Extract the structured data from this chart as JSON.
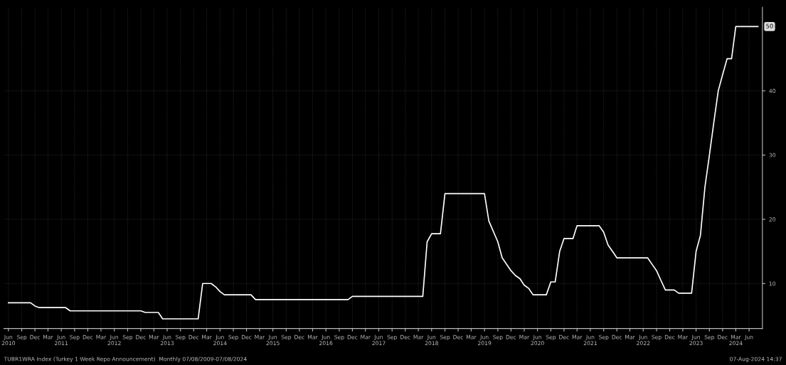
{
  "chart_data": {
    "type": "line",
    "x": [
      "2010-06",
      "2010-11",
      "2010-12",
      "2011-01",
      "2011-02",
      "2011-07",
      "2011-08",
      "2012-12",
      "2013-01",
      "2013-04",
      "2013-05",
      "2014-01",
      "2014-02",
      "2014-04",
      "2014-05",
      "2014-06",
      "2014-07",
      "2015-01",
      "2015-02",
      "2016-11",
      "2016-12",
      "2018-04",
      "2018-05",
      "2018-06",
      "2018-08",
      "2018-09",
      "2019-06",
      "2019-07",
      "2019-09",
      "2019-10",
      "2019-12",
      "2020-01",
      "2020-02",
      "2020-03",
      "2020-04",
      "2020-05",
      "2020-08",
      "2020-09",
      "2020-10",
      "2020-11",
      "2020-12",
      "2021-02",
      "2021-03",
      "2021-08",
      "2021-09",
      "2021-10",
      "2021-11",
      "2021-12",
      "2022-07",
      "2022-08",
      "2022-09",
      "2022-10",
      "2022-11",
      "2023-01",
      "2023-02",
      "2023-05",
      "2023-06",
      "2023-07",
      "2023-08",
      "2023-09",
      "2023-10",
      "2023-11",
      "2023-12",
      "2024-01",
      "2024-02",
      "2024-03",
      "2024-08"
    ],
    "series": [
      {
        "color": "#ffffff",
        "values": [
          7,
          7,
          6.5,
          6.25,
          6.25,
          6.25,
          5.75,
          5.75,
          5.5,
          5.5,
          4.5,
          4.5,
          10,
          10,
          9.5,
          8.75,
          8.25,
          8.25,
          7.5,
          7.5,
          8,
          8,
          16.5,
          17.75,
          17.75,
          24,
          24,
          19.75,
          16.5,
          14,
          12,
          11.25,
          10.75,
          9.75,
          9.25,
          8.25,
          8.25,
          10.25,
          10.25,
          15,
          17,
          17,
          19,
          19,
          18,
          16,
          15,
          14,
          14,
          13,
          12,
          10.5,
          9,
          9,
          8.5,
          8.5,
          15,
          17.5,
          25,
          30,
          35,
          40,
          42.5,
          45,
          45,
          50,
          50
        ]
      }
    ],
    "xlim": [
      "2010-05",
      "2024-09"
    ],
    "xticks": [
      {
        "value": "2010-06",
        "label": "Jun\n2010"
      },
      {
        "value": "2010-09",
        "label": "Sep"
      },
      {
        "value": "2010-12",
        "label": "Dec"
      },
      {
        "value": "2011-03",
        "label": "Mar"
      },
      {
        "value": "2011-06",
        "label": "Jun\n2011"
      },
      {
        "value": "2011-09",
        "label": "Sep"
      },
      {
        "value": "2011-12",
        "label": "Dec"
      },
      {
        "value": "2012-03",
        "label": "Mar"
      },
      {
        "value": "2012-06",
        "label": "Jun\n2012"
      },
      {
        "value": "2012-09",
        "label": "Sep"
      },
      {
        "value": "2012-12",
        "label": "Dec"
      },
      {
        "value": "2013-03",
        "label": "Mar"
      },
      {
        "value": "2013-06",
        "label": "Jun\n2013"
      },
      {
        "value": "2013-09",
        "label": "Sep"
      },
      {
        "value": "2013-12",
        "label": "Dec"
      },
      {
        "value": "2014-03",
        "label": "Mar"
      },
      {
        "value": "2014-06",
        "label": "Jun\n2014"
      },
      {
        "value": "2014-09",
        "label": "Sep"
      },
      {
        "value": "2014-12",
        "label": "Dec"
      },
      {
        "value": "2015-03",
        "label": "Mar"
      },
      {
        "value": "2015-06",
        "label": "Jun\n2015"
      },
      {
        "value": "2015-09",
        "label": "Sep"
      },
      {
        "value": "2015-12",
        "label": "Dec"
      },
      {
        "value": "2016-03",
        "label": "Mar"
      },
      {
        "value": "2016-06",
        "label": "Jun\n2016"
      },
      {
        "value": "2016-09",
        "label": "Sep"
      },
      {
        "value": "2016-12",
        "label": "Dec"
      },
      {
        "value": "2017-03",
        "label": "Mar"
      },
      {
        "value": "2017-06",
        "label": "Jun\n2017"
      },
      {
        "value": "2017-09",
        "label": "Sep"
      },
      {
        "value": "2017-12",
        "label": "Dec"
      },
      {
        "value": "2018-03",
        "label": "Mar"
      },
      {
        "value": "2018-06",
        "label": "Jun\n2018"
      },
      {
        "value": "2018-09",
        "label": "Sep"
      },
      {
        "value": "2018-12",
        "label": "Dec"
      },
      {
        "value": "2019-03",
        "label": "Mar"
      },
      {
        "value": "2019-06",
        "label": "Jun\n2019"
      },
      {
        "value": "2019-09",
        "label": "Sep"
      },
      {
        "value": "2019-12",
        "label": "Dec"
      },
      {
        "value": "2020-03",
        "label": "Mar"
      },
      {
        "value": "2020-06",
        "label": "Jun\n2020"
      },
      {
        "value": "2020-09",
        "label": "Sep"
      },
      {
        "value": "2020-12",
        "label": "Dec"
      },
      {
        "value": "2021-03",
        "label": "Mar"
      },
      {
        "value": "2021-06",
        "label": "Jun\n2021"
      },
      {
        "value": "2021-09",
        "label": "Sep"
      },
      {
        "value": "2021-12",
        "label": "Dec"
      },
      {
        "value": "2022-03",
        "label": "Mar"
      },
      {
        "value": "2022-06",
        "label": "Jun\n2022"
      },
      {
        "value": "2022-09",
        "label": "Sep"
      },
      {
        "value": "2022-12",
        "label": "Dec"
      },
      {
        "value": "2023-03",
        "label": "Mar"
      },
      {
        "value": "2023-06",
        "label": "Jun\n2023"
      },
      {
        "value": "2023-09",
        "label": "Sep"
      },
      {
        "value": "2023-12",
        "label": "Dec"
      },
      {
        "value": "2024-03",
        "label": "Mar\n2024"
      },
      {
        "value": "2024-06",
        "label": "Jun"
      }
    ],
    "ylim": [
      3,
      53
    ],
    "yticks": [
      10,
      20,
      30,
      40
    ],
    "grid": true,
    "marker": "none",
    "line_style": "solid",
    "annotations": [
      {
        "text": "50",
        "x": "2024-08",
        "y": 50
      },
      "TUBR1WRA Index (Turkey 1 Week Repo Announcement)  Monthly 07/08/2009-07/08/2024",
      "07-Aug-2024 14:37"
    ]
  }
}
